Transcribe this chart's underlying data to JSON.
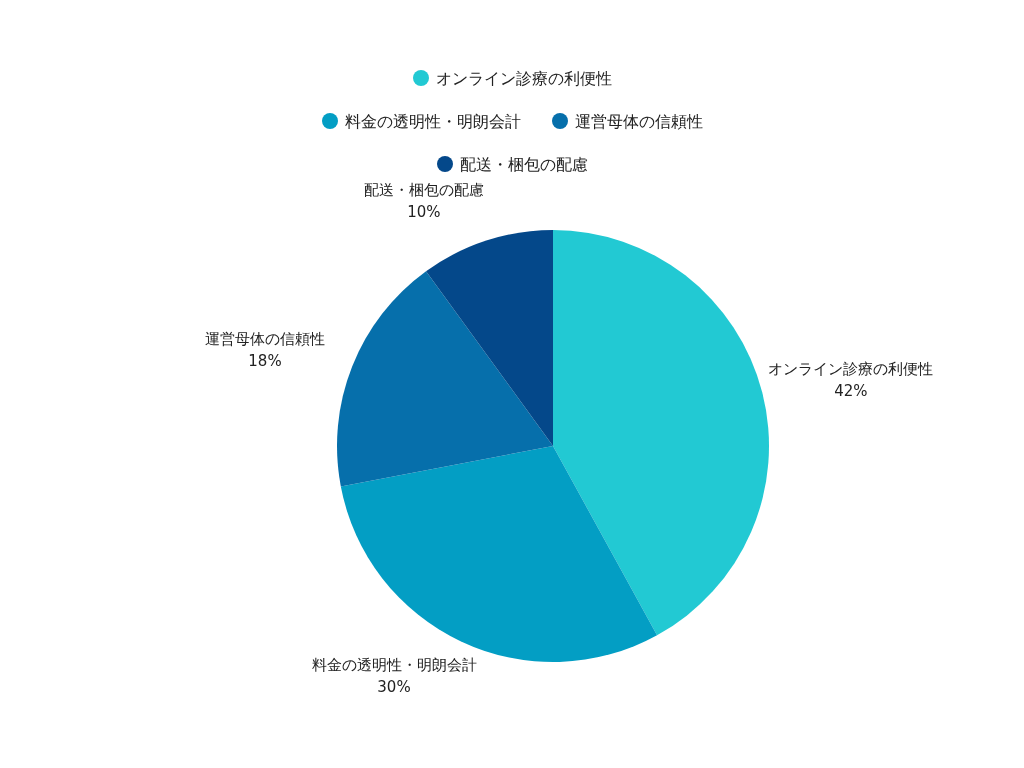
{
  "chart_data": {
    "type": "pie",
    "categories": [
      "オンライン診療の利便性",
      "料金の透明性・明朗会計",
      "運営母体の信頼性",
      "配送・梱包の配慮"
    ],
    "values": [
      42,
      30,
      18,
      10
    ],
    "colors": [
      "#22c9d3",
      "#039ec4",
      "#066fab",
      "#04488a"
    ],
    "value_labels": [
      "42%",
      "30%",
      "18%",
      "10%"
    ],
    "legend": "top"
  }
}
